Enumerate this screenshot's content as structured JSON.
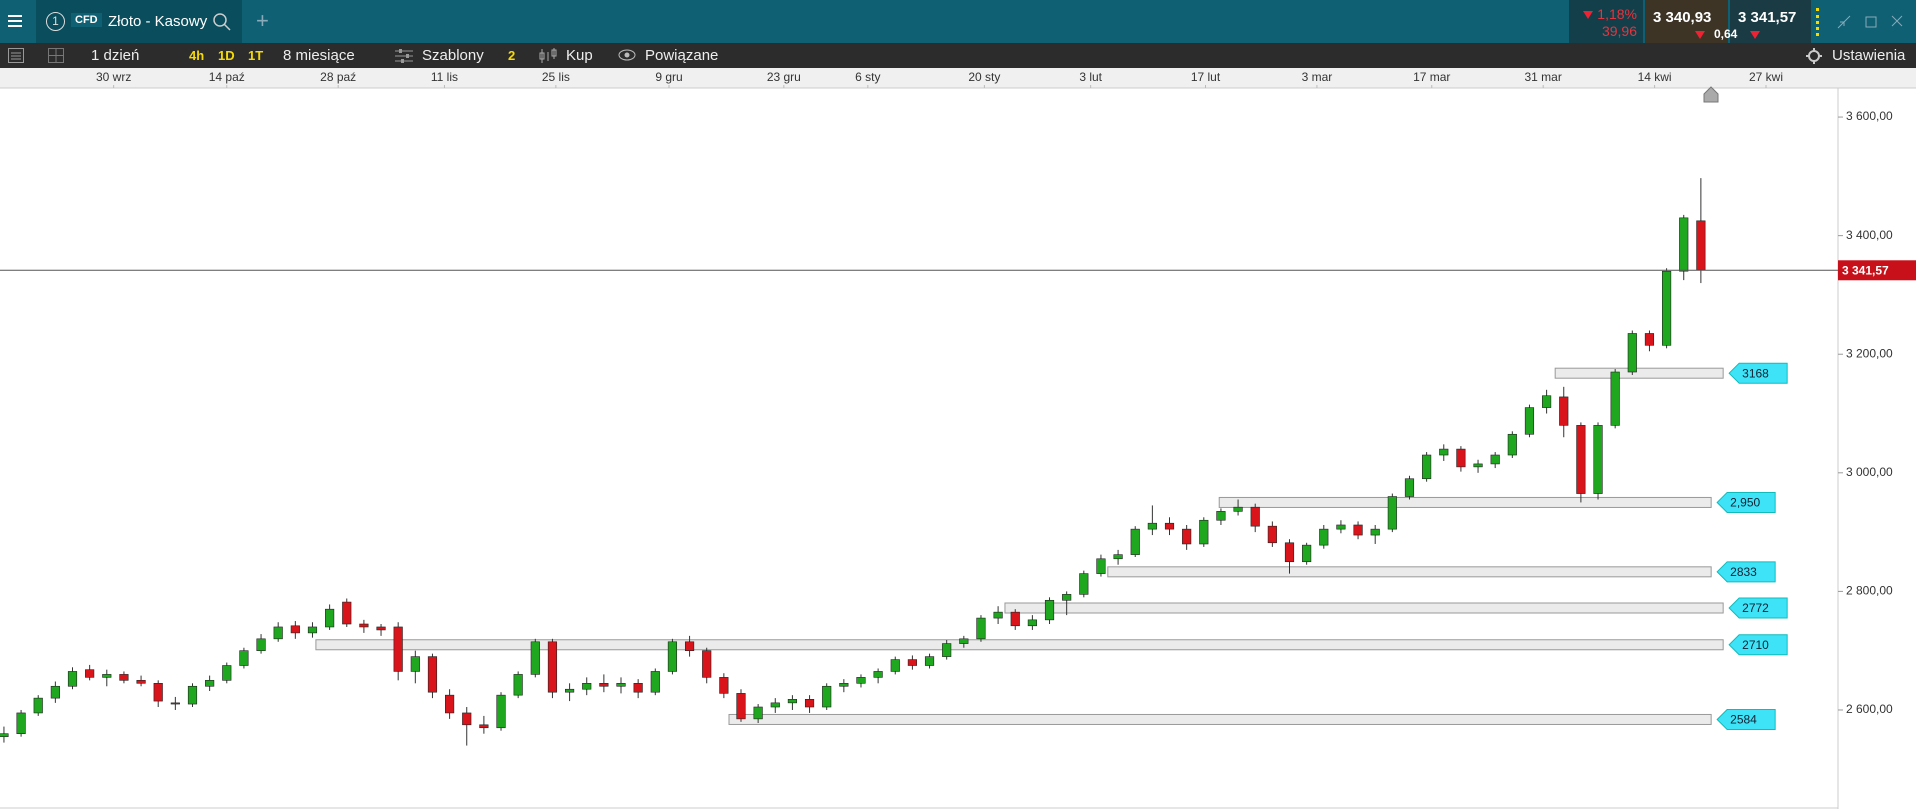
{
  "header": {
    "badge_number": "1",
    "instrument_type": "CFD",
    "instrument": "Złoto - Kasowy",
    "change_pct": "1,18%",
    "change_abs": "39,96",
    "bid": "3 340,93",
    "spread": "0,64",
    "ask": "3 341,57"
  },
  "toolbar": {
    "interval": "1 dzień",
    "quick_intervals": [
      "4h",
      "1D",
      "1T"
    ],
    "range": "8 miesiące",
    "templates": "Szablony",
    "templates_count": "2",
    "buy": "Kup",
    "related": "Powiązane",
    "settings": "Ustawienia"
  },
  "chart_data": {
    "type": "candlestick",
    "up_color": "#1fa81f",
    "down_color": "#d9141b",
    "xlim": [
      -0.23,
      107.0
    ],
    "ylim": [
      2433,
      3649
    ],
    "xticks": [
      {
        "value": 6.4,
        "label": "30 wrz"
      },
      {
        "value": 13,
        "label": "14 paź"
      },
      {
        "value": 19.5,
        "label": "28 paź"
      },
      {
        "value": 25.7,
        "label": "11 lis"
      },
      {
        "value": 32.2,
        "label": "25 lis"
      },
      {
        "value": 38.8,
        "label": "9 gru"
      },
      {
        "value": 45.5,
        "label": "23 gru"
      },
      {
        "value": 50.4,
        "label": "6 sty"
      },
      {
        "value": 57.2,
        "label": "20 sty"
      },
      {
        "value": 63.4,
        "label": "3 lut"
      },
      {
        "value": 70.1,
        "label": "17 lut"
      },
      {
        "value": 76.6,
        "label": "3 mar"
      },
      {
        "value": 83.3,
        "label": "17 mar"
      },
      {
        "value": 89.8,
        "label": "31 mar"
      },
      {
        "value": 96.3,
        "label": "14 kwi"
      },
      {
        "value": 102.8,
        "label": "27 kwi"
      }
    ],
    "yticks": [
      {
        "value": 3600,
        "label": "3 600,00"
      },
      {
        "value": 3400,
        "label": "3 400,00"
      },
      {
        "value": 3200,
        "label": "3 200,00"
      },
      {
        "value": 3000,
        "label": "3 000,00"
      },
      {
        "value": 2800,
        "label": "2 800,00"
      },
      {
        "value": 2600,
        "label": "2 600,00"
      }
    ],
    "last_price": {
      "value": 3341.57,
      "label": "3 341,57"
    },
    "levels": [
      3168,
      {
        "value": 2950,
        "label": "2,950"
      },
      2833,
      2772,
      2710,
      2584
    ],
    "ohlc": [
      [
        2555,
        2572,
        2545,
        2560
      ],
      [
        2560,
        2600,
        2555,
        2595
      ],
      [
        2595,
        2625,
        2590,
        2620
      ],
      [
        2620,
        2648,
        2612,
        2640
      ],
      [
        2640,
        2672,
        2635,
        2665
      ],
      [
        2668,
        2676,
        2650,
        2655
      ],
      [
        2655,
        2668,
        2640,
        2660
      ],
      [
        2660,
        2665,
        2645,
        2650
      ],
      [
        2650,
        2658,
        2640,
        2645
      ],
      [
        2645,
        2650,
        2605,
        2615
      ],
      [
        2612,
        2622,
        2600,
        2610
      ],
      [
        2610,
        2645,
        2605,
        2640
      ],
      [
        2640,
        2658,
        2632,
        2650
      ],
      [
        2650,
        2680,
        2645,
        2675
      ],
      [
        2675,
        2705,
        2670,
        2700
      ],
      [
        2700,
        2728,
        2695,
        2720
      ],
      [
        2720,
        2748,
        2715,
        2740
      ],
      [
        2742,
        2750,
        2720,
        2730
      ],
      [
        2730,
        2748,
        2722,
        2740
      ],
      [
        2740,
        2778,
        2735,
        2770
      ],
      [
        2782,
        2788,
        2740,
        2745
      ],
      [
        2745,
        2752,
        2730,
        2740
      ],
      [
        2740,
        2745,
        2725,
        2735
      ],
      [
        2740,
        2748,
        2650,
        2665
      ],
      [
        2665,
        2700,
        2645,
        2690
      ],
      [
        2690,
        2695,
        2620,
        2630
      ],
      [
        2625,
        2635,
        2585,
        2595
      ],
      [
        2595,
        2605,
        2540,
        2575
      ],
      [
        2575,
        2590,
        2560,
        2570
      ],
      [
        2570,
        2630,
        2565,
        2625
      ],
      [
        2625,
        2665,
        2620,
        2660
      ],
      [
        2660,
        2720,
        2655,
        2715
      ],
      [
        2715,
        2720,
        2620,
        2630
      ],
      [
        2630,
        2645,
        2615,
        2635
      ],
      [
        2635,
        2655,
        2625,
        2645
      ],
      [
        2645,
        2660,
        2630,
        2640
      ],
      [
        2640,
        2655,
        2628,
        2645
      ],
      [
        2645,
        2652,
        2620,
        2630
      ],
      [
        2630,
        2670,
        2625,
        2665
      ],
      [
        2665,
        2720,
        2660,
        2715
      ],
      [
        2715,
        2725,
        2690,
        2700
      ],
      [
        2700,
        2705,
        2645,
        2655
      ],
      [
        2655,
        2662,
        2620,
        2628
      ],
      [
        2628,
        2635,
        2580,
        2585
      ],
      [
        2585,
        2610,
        2578,
        2605
      ],
      [
        2605,
        2620,
        2595,
        2612
      ],
      [
        2612,
        2625,
        2600,
        2618
      ],
      [
        2618,
        2625,
        2595,
        2605
      ],
      [
        2605,
        2645,
        2600,
        2640
      ],
      [
        2640,
        2652,
        2630,
        2645
      ],
      [
        2645,
        2660,
        2638,
        2655
      ],
      [
        2655,
        2670,
        2645,
        2665
      ],
      [
        2665,
        2690,
        2660,
        2685
      ],
      [
        2685,
        2692,
        2668,
        2675
      ],
      [
        2675,
        2695,
        2670,
        2690
      ],
      [
        2690,
        2718,
        2685,
        2712
      ],
      [
        2712,
        2725,
        2705,
        2720
      ],
      [
        2720,
        2760,
        2715,
        2755
      ],
      [
        2755,
        2775,
        2745,
        2765
      ],
      [
        2765,
        2770,
        2735,
        2742
      ],
      [
        2742,
        2760,
        2735,
        2752
      ],
      [
        2752,
        2790,
        2745,
        2785
      ],
      [
        2785,
        2800,
        2760,
        2795
      ],
      [
        2795,
        2835,
        2790,
        2830
      ],
      [
        2830,
        2862,
        2825,
        2855
      ],
      [
        2855,
        2870,
        2845,
        2862
      ],
      [
        2862,
        2910,
        2858,
        2905
      ],
      [
        2905,
        2945,
        2895,
        2915
      ],
      [
        2915,
        2925,
        2895,
        2905
      ],
      [
        2905,
        2912,
        2870,
        2880
      ],
      [
        2880,
        2925,
        2875,
        2920
      ],
      [
        2920,
        2940,
        2912,
        2935
      ],
      [
        2935,
        2955,
        2928,
        2942
      ],
      [
        2942,
        2948,
        2900,
        2910
      ],
      [
        2910,
        2918,
        2875,
        2882
      ],
      [
        2882,
        2888,
        2830,
        2850
      ],
      [
        2850,
        2882,
        2845,
        2878
      ],
      [
        2878,
        2912,
        2872,
        2905
      ],
      [
        2905,
        2920,
        2898,
        2912
      ],
      [
        2912,
        2918,
        2888,
        2895
      ],
      [
        2895,
        2912,
        2880,
        2905
      ],
      [
        2905,
        2965,
        2900,
        2960
      ],
      [
        2960,
        2995,
        2955,
        2990
      ],
      [
        2990,
        3035,
        2985,
        3030
      ],
      [
        3030,
        3048,
        3020,
        3040
      ],
      [
        3040,
        3045,
        3002,
        3010
      ],
      [
        3010,
        3022,
        3000,
        3015
      ],
      [
        3015,
        3035,
        3008,
        3030
      ],
      [
        3030,
        3070,
        3025,
        3065
      ],
      [
        3065,
        3115,
        3060,
        3110
      ],
      [
        3110,
        3140,
        3100,
        3130
      ],
      [
        3128,
        3145,
        3060,
        3080
      ],
      [
        3080,
        3085,
        2950,
        2965
      ],
      [
        2965,
        3085,
        2955,
        3080
      ],
      [
        3080,
        3175,
        3075,
        3170
      ],
      [
        3170,
        3240,
        3165,
        3235
      ],
      [
        3235,
        3240,
        3205,
        3215
      ],
      [
        3215,
        3345,
        3210,
        3340
      ],
      [
        3340,
        3435,
        3325,
        3430
      ],
      [
        3425,
        3497,
        3320,
        3342
      ]
    ]
  }
}
